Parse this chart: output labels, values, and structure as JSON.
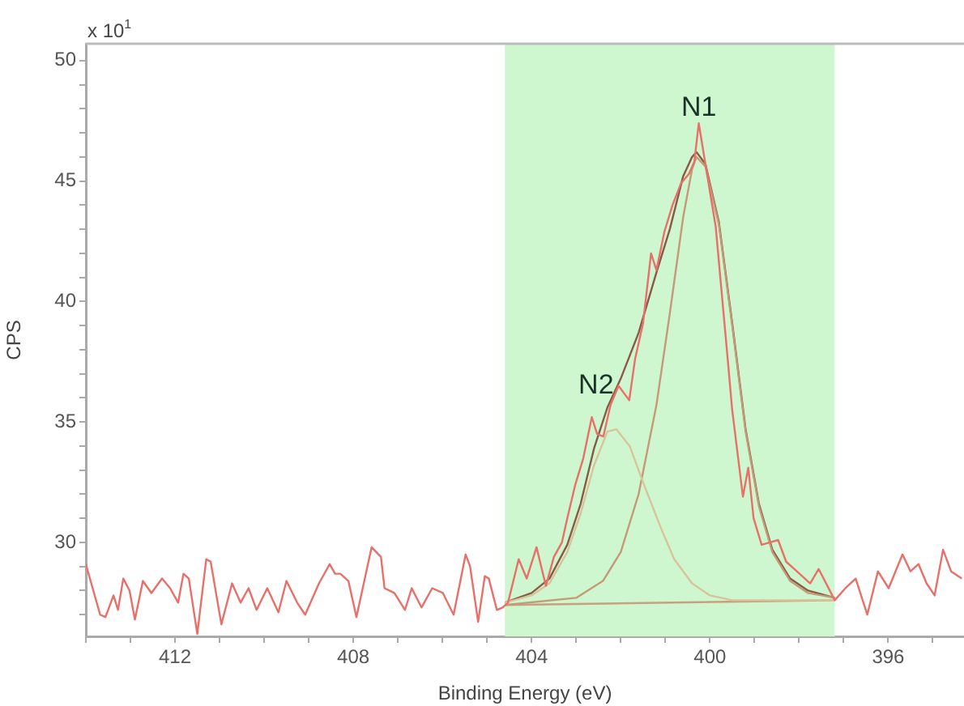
{
  "chart_data": {
    "type": "line",
    "xlabel": "Binding Energy (eV)",
    "ylabel": "CPS",
    "xlim": [
      414,
      394.3
    ],
    "ylim": [
      26.1,
      50.7
    ],
    "xticks": [
      {
        "value": 414,
        "label": null
      },
      {
        "value": 413,
        "label": null
      },
      412,
      {
        "value": 411,
        "label": null
      },
      {
        "value": 410,
        "label": null
      },
      {
        "value": 409,
        "label": null
      },
      408,
      {
        "value": 407,
        "label": null
      },
      {
        "value": 406,
        "label": null
      },
      {
        "value": 405,
        "label": null
      },
      404,
      {
        "value": 403,
        "label": null
      },
      {
        "value": 402,
        "label": null
      },
      {
        "value": 401,
        "label": null
      },
      400,
      {
        "value": 399,
        "label": null
      },
      {
        "value": 398,
        "label": null
      },
      {
        "value": 397,
        "label": null
      },
      396,
      {
        "value": 395,
        "label": null
      }
    ],
    "yticks": [
      {
        "value": 27,
        "label": null
      },
      {
        "value": 28,
        "label": null
      },
      {
        "value": 29,
        "label": null
      },
      30,
      {
        "value": 31,
        "label": null
      },
      {
        "value": 32,
        "label": null
      },
      {
        "value": 33,
        "label": null
      },
      {
        "value": 34,
        "label": null
      },
      35,
      {
        "value": 36,
        "label": null
      },
      {
        "value": 37,
        "label": null
      },
      {
        "value": 38,
        "label": null
      },
      {
        "value": 39,
        "label": null
      },
      40,
      {
        "value": 41,
        "label": null
      },
      {
        "value": 42,
        "label": null
      },
      {
        "value": 43,
        "label": null
      },
      {
        "value": 44,
        "label": null
      },
      45,
      {
        "value": 46,
        "label": null
      },
      {
        "value": 47,
        "label": null
      },
      {
        "value": 48,
        "label": null
      },
      {
        "value": 49,
        "label": null
      },
      50
    ],
    "grid": false,
    "legend": false,
    "marker": "none",
    "bands": [
      {
        "axis": "x",
        "from": 404.6,
        "to": 397.2,
        "color": "#cff7cf"
      }
    ],
    "annotations": [
      "x 10$^{1}$",
      {
        "text": "N1",
        "x": 400.25,
        "y": 47.4
      },
      {
        "text": "N2",
        "x": 402.05,
        "y": 36.5
      }
    ],
    "series": [
      {
        "color": "#e8706a",
        "x": [
          414.0,
          413.68,
          413.56,
          413.38,
          413.28,
          413.16,
          413.02,
          412.9,
          412.72,
          412.53,
          412.29,
          412.11,
          411.93,
          411.81,
          411.69,
          411.5,
          411.3,
          411.2,
          410.96,
          410.72,
          410.53,
          410.35,
          410.17,
          409.93,
          409.68,
          409.5,
          409.26,
          409.08,
          408.77,
          408.53,
          408.41,
          408.29,
          408.11,
          407.93,
          407.59,
          407.38,
          407.3,
          407.08,
          406.84,
          406.69,
          406.47,
          406.23,
          405.99,
          405.75,
          405.48,
          405.38,
          405.2,
          405.05,
          404.96,
          404.78,
          404.65,
          404.53,
          404.29,
          404.11,
          403.89,
          403.68,
          403.5,
          403.32,
          403.2,
          403.02,
          402.84,
          402.65,
          402.53,
          402.39,
          402.23,
          402.05,
          401.81,
          401.68,
          401.5,
          401.32,
          401.2,
          401.02,
          400.84,
          400.65,
          400.47,
          400.35,
          400.25,
          400.11,
          399.87,
          399.62,
          399.5,
          399.26,
          399.14,
          399.02,
          398.84,
          398.65,
          398.47,
          398.29,
          398.11,
          397.93,
          397.75,
          397.56,
          397.2,
          396.96,
          396.73,
          396.47,
          396.23,
          395.99,
          395.68,
          395.5,
          395.32,
          395.14,
          394.96,
          394.77,
          394.59,
          394.35
        ],
        "values": [
          29.1,
          27.0,
          26.9,
          27.8,
          27.2,
          28.5,
          28.0,
          26.8,
          28.4,
          27.9,
          28.5,
          28.1,
          27.5,
          28.7,
          28.5,
          26.2,
          29.3,
          29.2,
          26.6,
          28.3,
          27.5,
          28.1,
          27.2,
          28.1,
          27.1,
          28.4,
          27.5,
          27.0,
          28.3,
          29.1,
          28.7,
          28.7,
          28.4,
          26.9,
          29.8,
          29.4,
          28.1,
          27.9,
          27.2,
          28.1,
          27.3,
          28.1,
          27.9,
          27.0,
          29.5,
          29.0,
          26.7,
          28.6,
          28.5,
          27.2,
          27.3,
          27.5,
          29.3,
          28.5,
          29.8,
          28.2,
          29.4,
          30.0,
          31.0,
          32.4,
          33.5,
          35.2,
          34.5,
          34.4,
          35.7,
          36.5,
          35.9,
          37.6,
          39.1,
          42.0,
          41.3,
          42.9,
          44.0,
          44.9,
          45.3,
          45.8,
          47.4,
          45.8,
          43.1,
          38.0,
          35.5,
          31.9,
          33.1,
          31.0,
          29.9,
          30.0,
          30.1,
          29.2,
          28.9,
          28.6,
          28.3,
          28.9,
          27.6,
          28.1,
          28.5,
          27.0,
          28.8,
          28.1,
          29.5,
          28.8,
          29.1,
          28.3,
          27.8,
          29.7,
          28.8,
          28.5
        ]
      },
      {
        "color": "#d8c49a",
        "x": [
          404.6,
          404.0,
          403.6,
          403.2,
          402.9,
          402.6,
          402.3,
          402.1,
          401.8,
          401.5,
          401.1,
          400.8,
          400.4,
          400.0,
          399.5,
          397.2
        ],
        "values": [
          27.5,
          27.8,
          28.3,
          29.6,
          31.2,
          33.2,
          34.6,
          34.7,
          34.0,
          32.5,
          30.6,
          29.3,
          28.3,
          27.8,
          27.6,
          27.6
        ]
      },
      {
        "color": "#c49a78",
        "x": [
          404.6,
          403.0,
          402.4,
          402.0,
          401.6,
          401.2,
          400.9,
          400.6,
          400.4,
          400.3,
          400.1,
          399.8,
          399.5,
          399.2,
          398.9,
          398.6,
          398.2,
          397.8,
          397.2
        ],
        "values": [
          27.4,
          27.7,
          28.4,
          29.6,
          32.0,
          35.7,
          39.5,
          43.5,
          45.5,
          46.0,
          45.6,
          43.2,
          39.0,
          34.6,
          31.5,
          29.6,
          28.4,
          27.9,
          27.7
        ]
      },
      {
        "color": "#8a5a48",
        "x": [
          404.6,
          404.0,
          403.6,
          403.2,
          402.9,
          402.6,
          402.3,
          402.0,
          401.6,
          401.2,
          400.9,
          400.6,
          400.4,
          400.3,
          400.1,
          399.8,
          399.5,
          399.2,
          398.9,
          398.6,
          398.2,
          397.8,
          397.2
        ],
        "values": [
          27.5,
          27.9,
          28.5,
          29.9,
          31.6,
          33.9,
          35.6,
          36.8,
          38.7,
          41.2,
          43.0,
          45.2,
          46.0,
          46.2,
          45.7,
          43.3,
          39.1,
          34.7,
          31.6,
          29.7,
          28.5,
          28.0,
          27.7
        ]
      },
      {
        "color": "#c8a080",
        "x": [
          404.6,
          397.2
        ],
        "values": [
          27.4,
          27.6
        ]
      }
    ]
  }
}
